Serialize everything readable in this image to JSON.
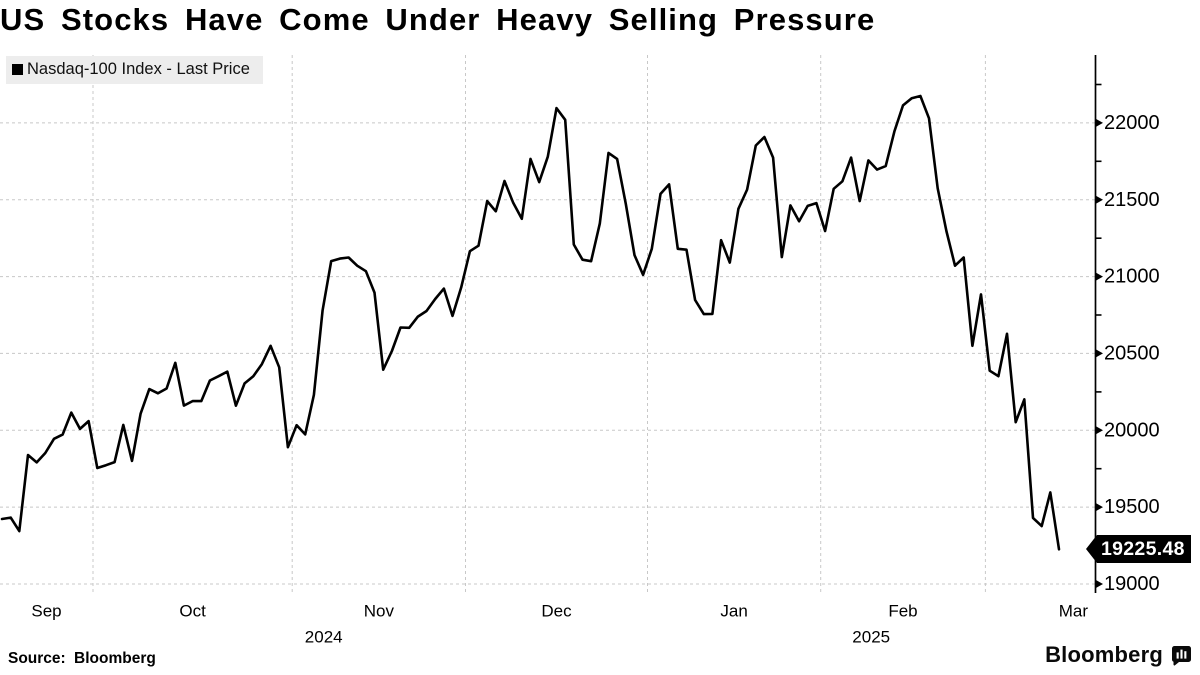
{
  "header": {
    "title": "US Stocks Have Come Under Heavy Selling Pressure"
  },
  "legend": {
    "swatch_color": "#000000",
    "label": "Nasdaq-100 Index - Last Price"
  },
  "last_price": {
    "value": "19225.48",
    "bg": "#000000",
    "fg": "#ffffff"
  },
  "footer": {
    "source": "Source: Bloomberg",
    "brand": "Bloomberg",
    "brand_icon": "bloomberg-bars-icon"
  },
  "chart_data": {
    "type": "line",
    "title": "US Stocks Have Come Under Heavy Selling Pressure",
    "legend_position": "top-left",
    "grid": true,
    "grid_color": "#c8c8c8",
    "line_color": "#000000",
    "y_axis": {
      "side": "right",
      "ticks": [
        19000,
        19500,
        20000,
        20500,
        21000,
        21500,
        22000
      ],
      "minor_tick_step": 250,
      "top": 22440,
      "bottom": 18950
    },
    "x_axis": {
      "month_labels": [
        "Sep",
        "Oct",
        "Nov",
        "Dec",
        "Jan",
        "Feb",
        "Mar"
      ],
      "year_labels": [
        "2024",
        "2025"
      ]
    },
    "series": [
      {
        "name": "Nasdaq-100 Index - Last Price",
        "color": "#000000",
        "last_price": 19225.48,
        "points": [
          [
            "2024-09-16",
            19423
          ],
          [
            "2024-09-17",
            19432
          ],
          [
            "2024-09-18",
            19344
          ],
          [
            "2024-09-19",
            19839
          ],
          [
            "2024-09-20",
            19791
          ],
          [
            "2024-09-23",
            19852
          ],
          [
            "2024-09-24",
            19945
          ],
          [
            "2024-09-25",
            19972
          ],
          [
            "2024-09-26",
            20115
          ],
          [
            "2024-09-27",
            20009
          ],
          [
            "2024-09-30",
            20060
          ],
          [
            "2024-10-01",
            19755
          ],
          [
            "2024-10-02",
            19773
          ],
          [
            "2024-10-03",
            19793
          ],
          [
            "2024-10-04",
            20035
          ],
          [
            "2024-10-07",
            19801
          ],
          [
            "2024-10-08",
            20108
          ],
          [
            "2024-10-09",
            20268
          ],
          [
            "2024-10-10",
            20241
          ],
          [
            "2024-10-11",
            20272
          ],
          [
            "2024-10-14",
            20439
          ],
          [
            "2024-10-15",
            20161
          ],
          [
            "2024-10-16",
            20190
          ],
          [
            "2024-10-17",
            20190
          ],
          [
            "2024-10-18",
            20324
          ],
          [
            "2024-10-21",
            20352
          ],
          [
            "2024-10-22",
            20382
          ],
          [
            "2024-10-23",
            20160
          ],
          [
            "2024-10-24",
            20305
          ],
          [
            "2024-10-25",
            20352
          ],
          [
            "2024-10-28",
            20431
          ],
          [
            "2024-10-29",
            20550
          ],
          [
            "2024-10-30",
            20410
          ],
          [
            "2024-10-31",
            19890
          ],
          [
            "2024-11-01",
            20033
          ],
          [
            "2024-11-04",
            19973
          ],
          [
            "2024-11-05",
            20230
          ],
          [
            "2024-11-06",
            20781
          ],
          [
            "2024-11-07",
            21101
          ],
          [
            "2024-11-08",
            21117
          ],
          [
            "2024-11-11",
            21124
          ],
          [
            "2024-11-12",
            21071
          ],
          [
            "2024-11-13",
            21035
          ],
          [
            "2024-11-14",
            20896
          ],
          [
            "2024-11-15",
            20394
          ],
          [
            "2024-11-18",
            20516
          ],
          [
            "2024-11-19",
            20669
          ],
          [
            "2024-11-20",
            20667
          ],
          [
            "2024-11-21",
            20740
          ],
          [
            "2024-11-22",
            20776
          ],
          [
            "2024-11-25",
            20854
          ],
          [
            "2024-11-26",
            20922
          ],
          [
            "2024-11-27",
            20744
          ],
          [
            "2024-11-29",
            20930
          ],
          [
            "2024-12-02",
            21165
          ],
          [
            "2024-12-03",
            21201
          ],
          [
            "2024-12-04",
            21491
          ],
          [
            "2024-12-05",
            21425
          ],
          [
            "2024-12-06",
            21622
          ],
          [
            "2024-12-09",
            21480
          ],
          [
            "2024-12-10",
            21376
          ],
          [
            "2024-12-11",
            21766
          ],
          [
            "2024-12-12",
            21615
          ],
          [
            "2024-12-13",
            21780
          ],
          [
            "2024-12-16",
            22096
          ],
          [
            "2024-12-17",
            22020
          ],
          [
            "2024-12-18",
            21209
          ],
          [
            "2024-12-19",
            21110
          ],
          [
            "2024-12-20",
            21100
          ],
          [
            "2024-12-23",
            21345
          ],
          [
            "2024-12-24",
            21805
          ],
          [
            "2024-12-26",
            21766
          ],
          [
            "2024-12-27",
            21473
          ],
          [
            "2024-12-30",
            21140
          ],
          [
            "2024-12-31",
            21012
          ],
          [
            "2025-01-02",
            21181
          ],
          [
            "2025-01-03",
            21538
          ],
          [
            "2025-01-06",
            21600
          ],
          [
            "2025-01-07",
            21181
          ],
          [
            "2025-01-08",
            21175
          ],
          [
            "2025-01-10",
            20848
          ],
          [
            "2025-01-13",
            20756
          ],
          [
            "2025-01-14",
            20757
          ],
          [
            "2025-01-15",
            21237
          ],
          [
            "2025-01-16",
            21091
          ],
          [
            "2025-01-17",
            21441
          ],
          [
            "2025-01-21",
            21566
          ],
          [
            "2025-01-22",
            21853
          ],
          [
            "2025-01-23",
            21908
          ],
          [
            "2025-01-24",
            21774
          ],
          [
            "2025-01-27",
            21127
          ],
          [
            "2025-01-28",
            21463
          ],
          [
            "2025-01-29",
            21360
          ],
          [
            "2025-01-30",
            21460
          ],
          [
            "2025-01-31",
            21478
          ],
          [
            "2025-02-03",
            21297
          ],
          [
            "2025-02-04",
            21571
          ],
          [
            "2025-02-05",
            21620
          ],
          [
            "2025-02-06",
            21774
          ],
          [
            "2025-02-07",
            21491
          ],
          [
            "2025-02-10",
            21756
          ],
          [
            "2025-02-11",
            21696
          ],
          [
            "2025-02-12",
            21719
          ],
          [
            "2025-02-13",
            21945
          ],
          [
            "2025-02-14",
            22114
          ],
          [
            "2025-02-18",
            22161
          ],
          [
            "2025-02-19",
            22175
          ],
          [
            "2025-02-20",
            22030
          ],
          [
            "2025-02-21",
            21574
          ],
          [
            "2025-02-24",
            21297
          ],
          [
            "2025-02-25",
            21071
          ],
          [
            "2025-02-26",
            21124
          ],
          [
            "2025-02-27",
            20550
          ],
          [
            "2025-02-28",
            20884
          ],
          [
            "2025-03-03",
            20388
          ],
          [
            "2025-03-04",
            20352
          ],
          [
            "2025-03-05",
            20628
          ],
          [
            "2025-03-06",
            20053
          ],
          [
            "2025-03-07",
            20201
          ],
          [
            "2025-03-10",
            19430
          ],
          [
            "2025-03-11",
            19377
          ],
          [
            "2025-03-12",
            19596
          ],
          [
            "2025-03-13",
            19225.48
          ]
        ]
      }
    ]
  }
}
